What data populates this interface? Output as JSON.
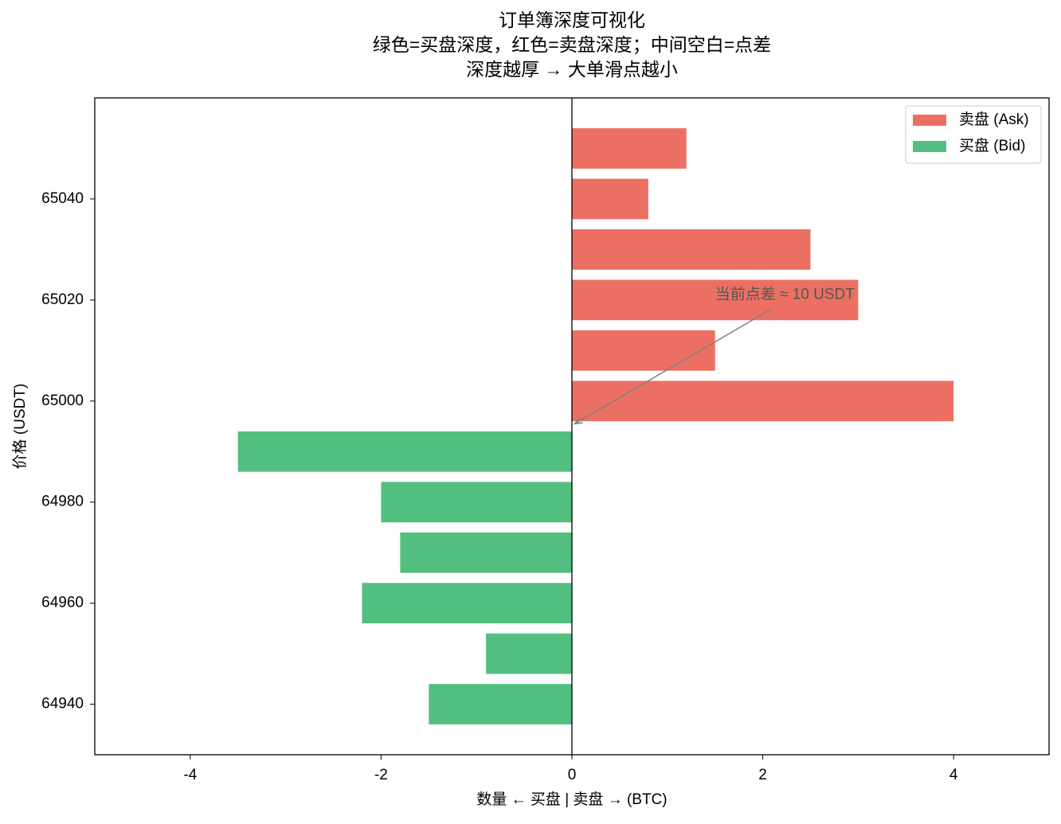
{
  "chart_data": {
    "type": "barh",
    "title": [
      "订单簿深度可视化",
      "绿色=买盘深度，红色=卖盘深度；中间空白=点差",
      "深度越厚 → 大单滑点越小"
    ],
    "xlabel": "数量 ← 买盘 | 卖盘 → (BTC)",
    "ylabel": "价格 (USDT)",
    "series": [
      {
        "name": "卖盘 (Ask)",
        "color": "#eb7063",
        "x": [
          65000,
          65010,
          65020,
          65030,
          65040,
          65050
        ],
        "values": [
          4.0,
          1.5,
          3.0,
          2.5,
          0.8,
          1.2
        ]
      },
      {
        "name": "买盘 (Bid)",
        "color": "#52bf80",
        "x": [
          64990,
          64980,
          64970,
          64960,
          64950,
          64940
        ],
        "values": [
          -3.5,
          -2.0,
          -1.8,
          -2.2,
          -0.9,
          -1.5
        ]
      }
    ],
    "xlim": [
      -5,
      5
    ],
    "xticks": [
      -4,
      -2,
      0,
      2,
      4
    ],
    "ylim": [
      64930,
      65060
    ],
    "yticks": [
      64940,
      64960,
      64980,
      65000,
      65020,
      65040
    ],
    "legend": "upper right",
    "annotation": {
      "text": "当前点差 ≈ 10 USDT",
      "xy": [
        0.03,
        64995.5
      ],
      "xytext": [
        1.5,
        65021
      ]
    }
  }
}
